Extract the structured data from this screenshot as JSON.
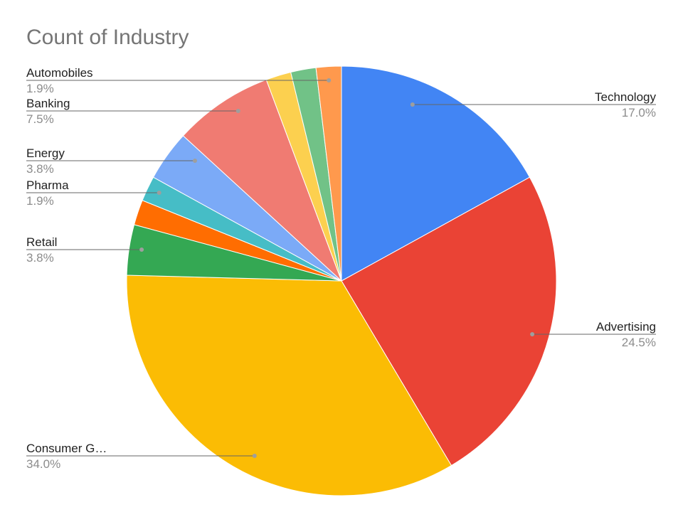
{
  "chart_data": {
    "type": "pie",
    "title": "Count of Industry",
    "slices": [
      {
        "label": "Technology",
        "percent_label": "17.0%",
        "value": 17.0,
        "color": "#4285F4"
      },
      {
        "label": "Advertising",
        "percent_label": "24.5%",
        "value": 24.5,
        "color": "#EA4335"
      },
      {
        "label": "Consumer G…",
        "percent_label": "34.0%",
        "value": 34.0,
        "color": "#FBBC04"
      },
      {
        "label": "Retail",
        "percent_label": "3.8%",
        "value": 3.8,
        "color": "#34A853"
      },
      {
        "label": "",
        "percent_label": "",
        "value": 1.9,
        "color": "#FF6D01"
      },
      {
        "label": "Pharma",
        "percent_label": "1.9%",
        "value": 1.9,
        "color": "#46BDC6"
      },
      {
        "label": "Energy",
        "percent_label": "3.8%",
        "value": 3.8,
        "color": "#7BAAF7"
      },
      {
        "label": "Banking",
        "percent_label": "7.5%",
        "value": 7.5,
        "color": "#F07B72"
      },
      {
        "label": "",
        "percent_label": "",
        "value": 1.9,
        "color": "#FCD04F"
      },
      {
        "label": "",
        "percent_label": "",
        "value": 1.9,
        "color": "#71C287"
      },
      {
        "label": "Automobiles",
        "percent_label": "1.9%",
        "value": 1.9,
        "color": "#FF994D"
      }
    ],
    "start_angle": "12 o'clock",
    "direction": "clockwise",
    "legend": "none"
  }
}
